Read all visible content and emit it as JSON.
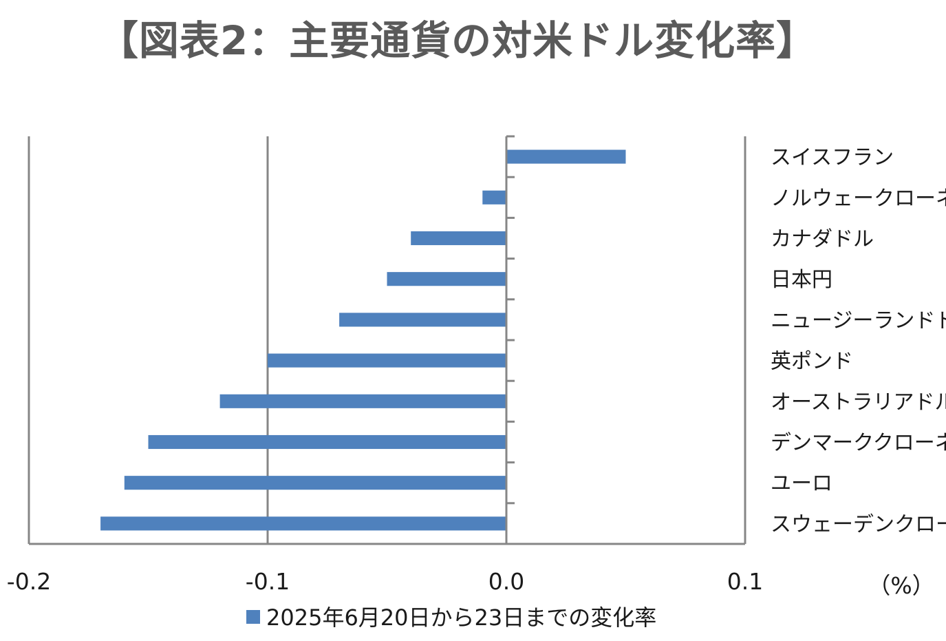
{
  "title": "【図表2：主要通貨の対米ドル変化率】",
  "chart_data": {
    "type": "bar",
    "orientation": "horizontal",
    "categories": [
      "スイスフラン",
      "ノルウェークローネ",
      "カナダドル",
      "日本円",
      "ニュージーランドドル",
      "英ポンド",
      "オーストラリアドル",
      "デンマーククローネ",
      "ユーロ",
      "スウェーデンクローナ"
    ],
    "series": [
      {
        "name": "2025年6月20日から23日までの変化率",
        "values": [
          0.05,
          -0.01,
          -0.04,
          -0.05,
          -0.07,
          -0.1,
          -0.12,
          -0.15,
          -0.16,
          -0.17
        ]
      }
    ],
    "xlim": [
      -0.2,
      0.1
    ],
    "xticks": [
      "-0.2",
      "-0.1",
      "0.0",
      "0.1"
    ],
    "unit_label": "（%）",
    "grid": "vertical",
    "legend_position": "bottom",
    "colors": {
      "bar": "#4f81bd",
      "grid": "#868686",
      "axis": "#868686"
    }
  }
}
